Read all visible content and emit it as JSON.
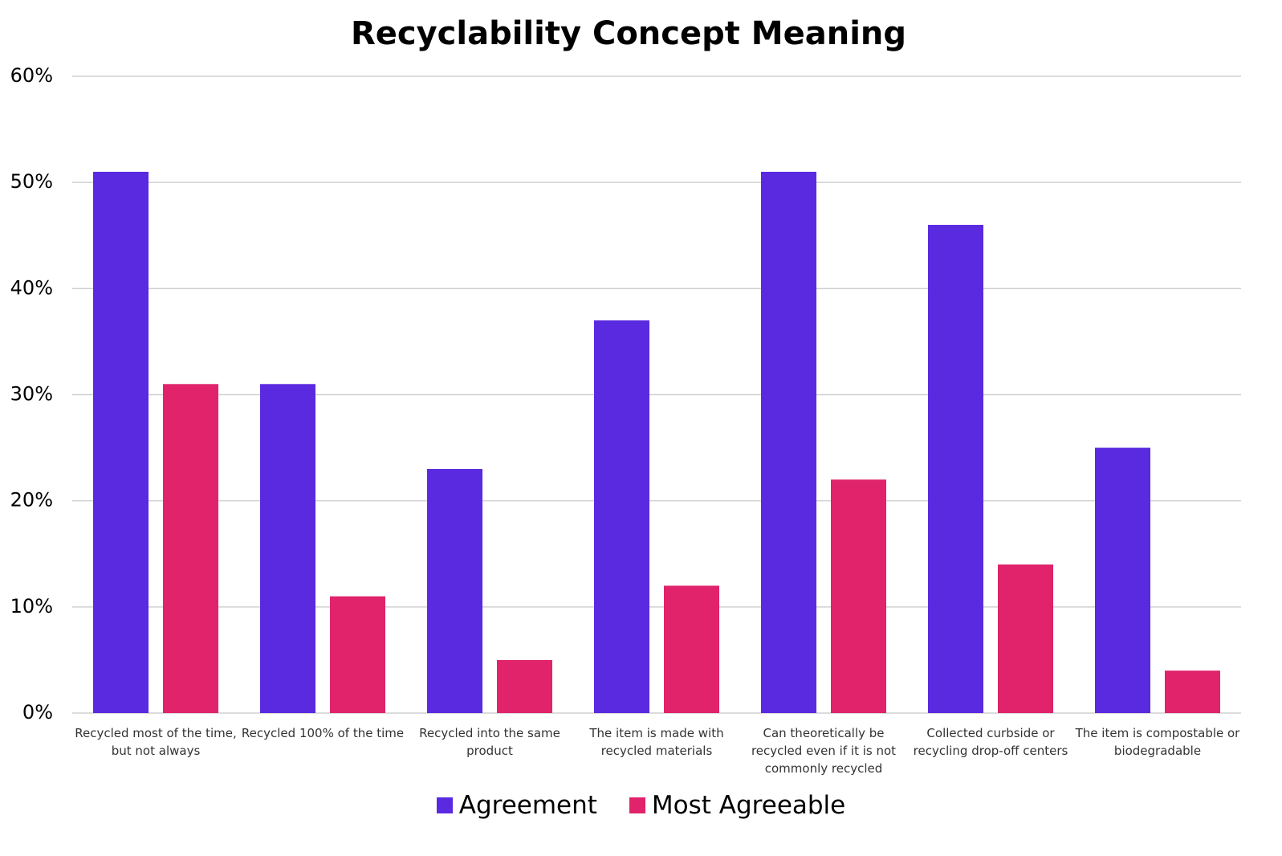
{
  "chart_data": {
    "type": "bar",
    "title": "Recyclability Concept Meaning",
    "categories": [
      "Recycled most of the time, but not always",
      "Recycled 100% of the time",
      "Recycled into the same product",
      "The item is made with recycled materials",
      "Can theoretically be recycled even if it is not commonly recycled",
      "Collected curbside or recycling drop-off centers",
      "The item is compostable or biodegradable"
    ],
    "series": [
      {
        "name": "Agreement",
        "color": "#5a2ae0",
        "values": [
          51,
          31,
          23,
          37,
          51,
          46,
          25
        ]
      },
      {
        "name": "Most Agreeable",
        "color": "#e0236b",
        "values": [
          31,
          11,
          5,
          12,
          22,
          14,
          4
        ]
      }
    ],
    "ylim": [
      0,
      60
    ],
    "yticks": [
      {
        "value": 0,
        "label": "0%"
      },
      {
        "value": 10,
        "label": "10%"
      },
      {
        "value": 20,
        "label": "20%"
      },
      {
        "value": 30,
        "label": "30%"
      },
      {
        "value": 40,
        "label": "40%"
      },
      {
        "value": 50,
        "label": "50%"
      },
      {
        "value": 60,
        "label": "60%"
      }
    ],
    "grid": true,
    "legend": "bottom"
  }
}
